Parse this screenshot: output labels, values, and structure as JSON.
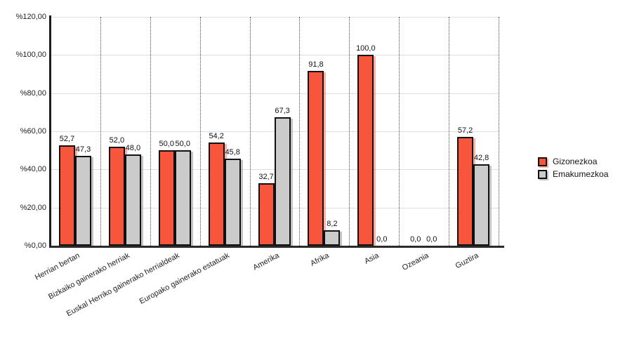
{
  "chart_data": {
    "type": "bar",
    "title": "",
    "categories": [
      "Herrian bertan",
      "Bizkaiko gainerako herriak",
      "Euskal Herriko gainerako herrialdeak",
      "Europako gainerako estatuak",
      "Amerika",
      "Afrika",
      "Asia",
      "Ozeania",
      "Guztira"
    ],
    "series": [
      {
        "name": "Gizonezkoa",
        "color": "#F7563D",
        "shadow_color": "rgba(247,86,61,0.45)",
        "values": [
          52.7,
          52.0,
          50.0,
          54.2,
          32.7,
          91.8,
          100.0,
          0.0,
          57.2
        ]
      },
      {
        "name": "Emakumezkoa",
        "color": "#CBCBCB",
        "shadow_color": "rgba(125,125,125,0.45)",
        "values": [
          47.3,
          48.0,
          50.0,
          45.8,
          67.3,
          8.2,
          0.0,
          0.0,
          42.8
        ]
      }
    ],
    "value_label_format": "one-decimal-comma",
    "yticks": [
      {
        "value": 120,
        "label": "%120,00"
      },
      {
        "value": 100,
        "label": "%100,00"
      },
      {
        "value": 80,
        "label": "%80,00"
      },
      {
        "value": 60,
        "label": "%60,00"
      },
      {
        "value": 40,
        "label": "%40,00"
      },
      {
        "value": 20,
        "label": "%20,00"
      },
      {
        "value": 0,
        "label": "%0,00"
      }
    ],
    "ylim": [
      0,
      120
    ],
    "xlabel": "",
    "ylabel": "",
    "grid": true,
    "legend_position": "right"
  }
}
